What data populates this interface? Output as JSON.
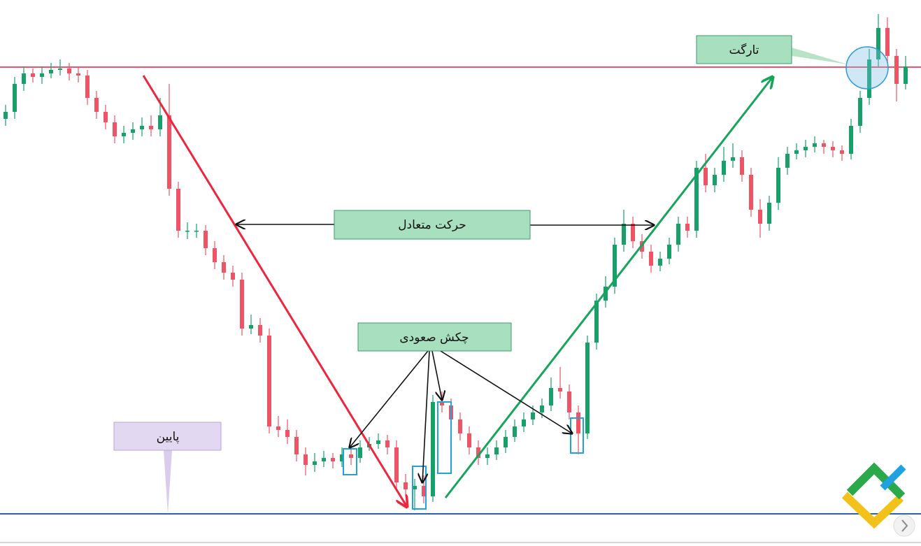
{
  "chart_data": {
    "type": "candlestick",
    "annotations": [
      "تارگت",
      "حرکت متعادل",
      "چکش صعودی",
      "پایین"
    ],
    "ylim": [
      0,
      730
    ],
    "up_color": "#18a06a",
    "down_color": "#ee5466",
    "hlines": [
      {
        "value": 644,
        "color": "#f2506b"
      },
      {
        "value": 5,
        "color": "#2166ac"
      }
    ],
    "ohlc": [
      [
        570,
        590,
        560,
        580
      ],
      [
        580,
        630,
        570,
        620
      ],
      [
        620,
        645,
        610,
        635
      ],
      [
        635,
        642,
        622,
        630
      ],
      [
        630,
        645,
        620,
        635
      ],
      [
        635,
        650,
        628,
        640
      ],
      [
        640,
        655,
        632,
        642
      ],
      [
        642,
        650,
        625,
        635
      ],
      [
        635,
        645,
        622,
        632
      ],
      [
        632,
        640,
        590,
        600
      ],
      [
        600,
        610,
        570,
        580
      ],
      [
        580,
        590,
        555,
        565
      ],
      [
        565,
        575,
        535,
        545
      ],
      [
        545,
        560,
        535,
        550
      ],
      [
        550,
        565,
        540,
        555
      ],
      [
        555,
        572,
        545,
        560
      ],
      [
        560,
        575,
        545,
        555
      ],
      [
        555,
        600,
        545,
        575
      ],
      [
        575,
        620,
        460,
        470
      ],
      [
        470,
        480,
        400,
        410
      ],
      [
        410,
        422,
        398,
        410
      ],
      [
        410,
        420,
        400,
        410
      ],
      [
        410,
        418,
        375,
        385
      ],
      [
        385,
        395,
        355,
        365
      ],
      [
        365,
        375,
        340,
        350
      ],
      [
        350,
        360,
        330,
        340
      ],
      [
        340,
        350,
        260,
        270
      ],
      [
        270,
        290,
        262,
        275
      ],
      [
        275,
        285,
        250,
        260
      ],
      [
        260,
        270,
        120,
        130
      ],
      [
        130,
        145,
        115,
        125
      ],
      [
        125,
        140,
        105,
        115
      ],
      [
        115,
        125,
        80,
        90
      ],
      [
        90,
        100,
        60,
        75
      ],
      [
        75,
        92,
        65,
        80
      ],
      [
        80,
        95,
        72,
        85
      ],
      [
        85,
        92,
        70,
        80
      ],
      [
        80,
        100,
        72,
        90
      ],
      [
        90,
        98,
        75,
        85
      ],
      [
        85,
        110,
        78,
        100
      ],
      [
        100,
        115,
        95,
        105
      ],
      [
        105,
        120,
        98,
        110
      ],
      [
        110,
        118,
        90,
        100
      ],
      [
        100,
        110,
        40,
        50
      ],
      [
        50,
        62,
        30,
        40
      ],
      [
        40,
        55,
        10,
        45
      ],
      [
        45,
        60,
        20,
        30
      ],
      [
        30,
        175,
        22,
        165
      ],
      [
        165,
        180,
        150,
        160
      ],
      [
        160,
        170,
        130,
        140
      ],
      [
        140,
        150,
        110,
        120
      ],
      [
        120,
        130,
        90,
        100
      ],
      [
        100,
        110,
        75,
        85
      ],
      [
        85,
        100,
        75,
        90
      ],
      [
        90,
        110,
        82,
        100
      ],
      [
        100,
        125,
        92,
        115
      ],
      [
        115,
        140,
        108,
        130
      ],
      [
        130,
        150,
        122,
        140
      ],
      [
        140,
        160,
        132,
        150
      ],
      [
        150,
        170,
        142,
        160
      ],
      [
        160,
        200,
        152,
        185
      ],
      [
        185,
        215,
        170,
        180
      ],
      [
        180,
        190,
        140,
        150
      ],
      [
        150,
        160,
        90,
        120
      ],
      [
        120,
        260,
        112,
        250
      ],
      [
        250,
        320,
        240,
        310
      ],
      [
        310,
        345,
        300,
        330
      ],
      [
        330,
        400,
        320,
        390
      ],
      [
        390,
        440,
        380,
        420
      ],
      [
        420,
        430,
        385,
        395
      ],
      [
        395,
        405,
        370,
        380
      ],
      [
        380,
        390,
        350,
        360
      ],
      [
        360,
        380,
        352,
        370
      ],
      [
        370,
        400,
        362,
        390
      ],
      [
        390,
        430,
        380,
        420
      ],
      [
        420,
        430,
        400,
        410
      ],
      [
        410,
        510,
        400,
        500
      ],
      [
        500,
        520,
        465,
        475
      ],
      [
        475,
        500,
        465,
        490
      ],
      [
        490,
        530,
        480,
        510
      ],
      [
        510,
        535,
        500,
        515
      ],
      [
        515,
        525,
        480,
        490
      ],
      [
        490,
        500,
        430,
        440
      ],
      [
        440,
        455,
        400,
        420
      ],
      [
        420,
        460,
        410,
        450
      ],
      [
        450,
        515,
        440,
        500
      ],
      [
        500,
        530,
        490,
        520
      ],
      [
        520,
        535,
        512,
        525
      ],
      [
        525,
        540,
        515,
        530
      ],
      [
        530,
        545,
        522,
        535
      ],
      [
        535,
        540,
        520,
        530
      ],
      [
        530,
        538,
        515,
        525
      ],
      [
        525,
        532,
        510,
        520
      ],
      [
        520,
        570,
        512,
        560
      ],
      [
        560,
        610,
        550,
        600
      ],
      [
        600,
        670,
        590,
        655
      ],
      [
        655,
        720,
        645,
        700
      ],
      [
        700,
        715,
        650,
        660
      ],
      [
        660,
        670,
        595,
        620
      ],
      [
        620,
        660,
        612,
        645
      ]
    ]
  }
}
